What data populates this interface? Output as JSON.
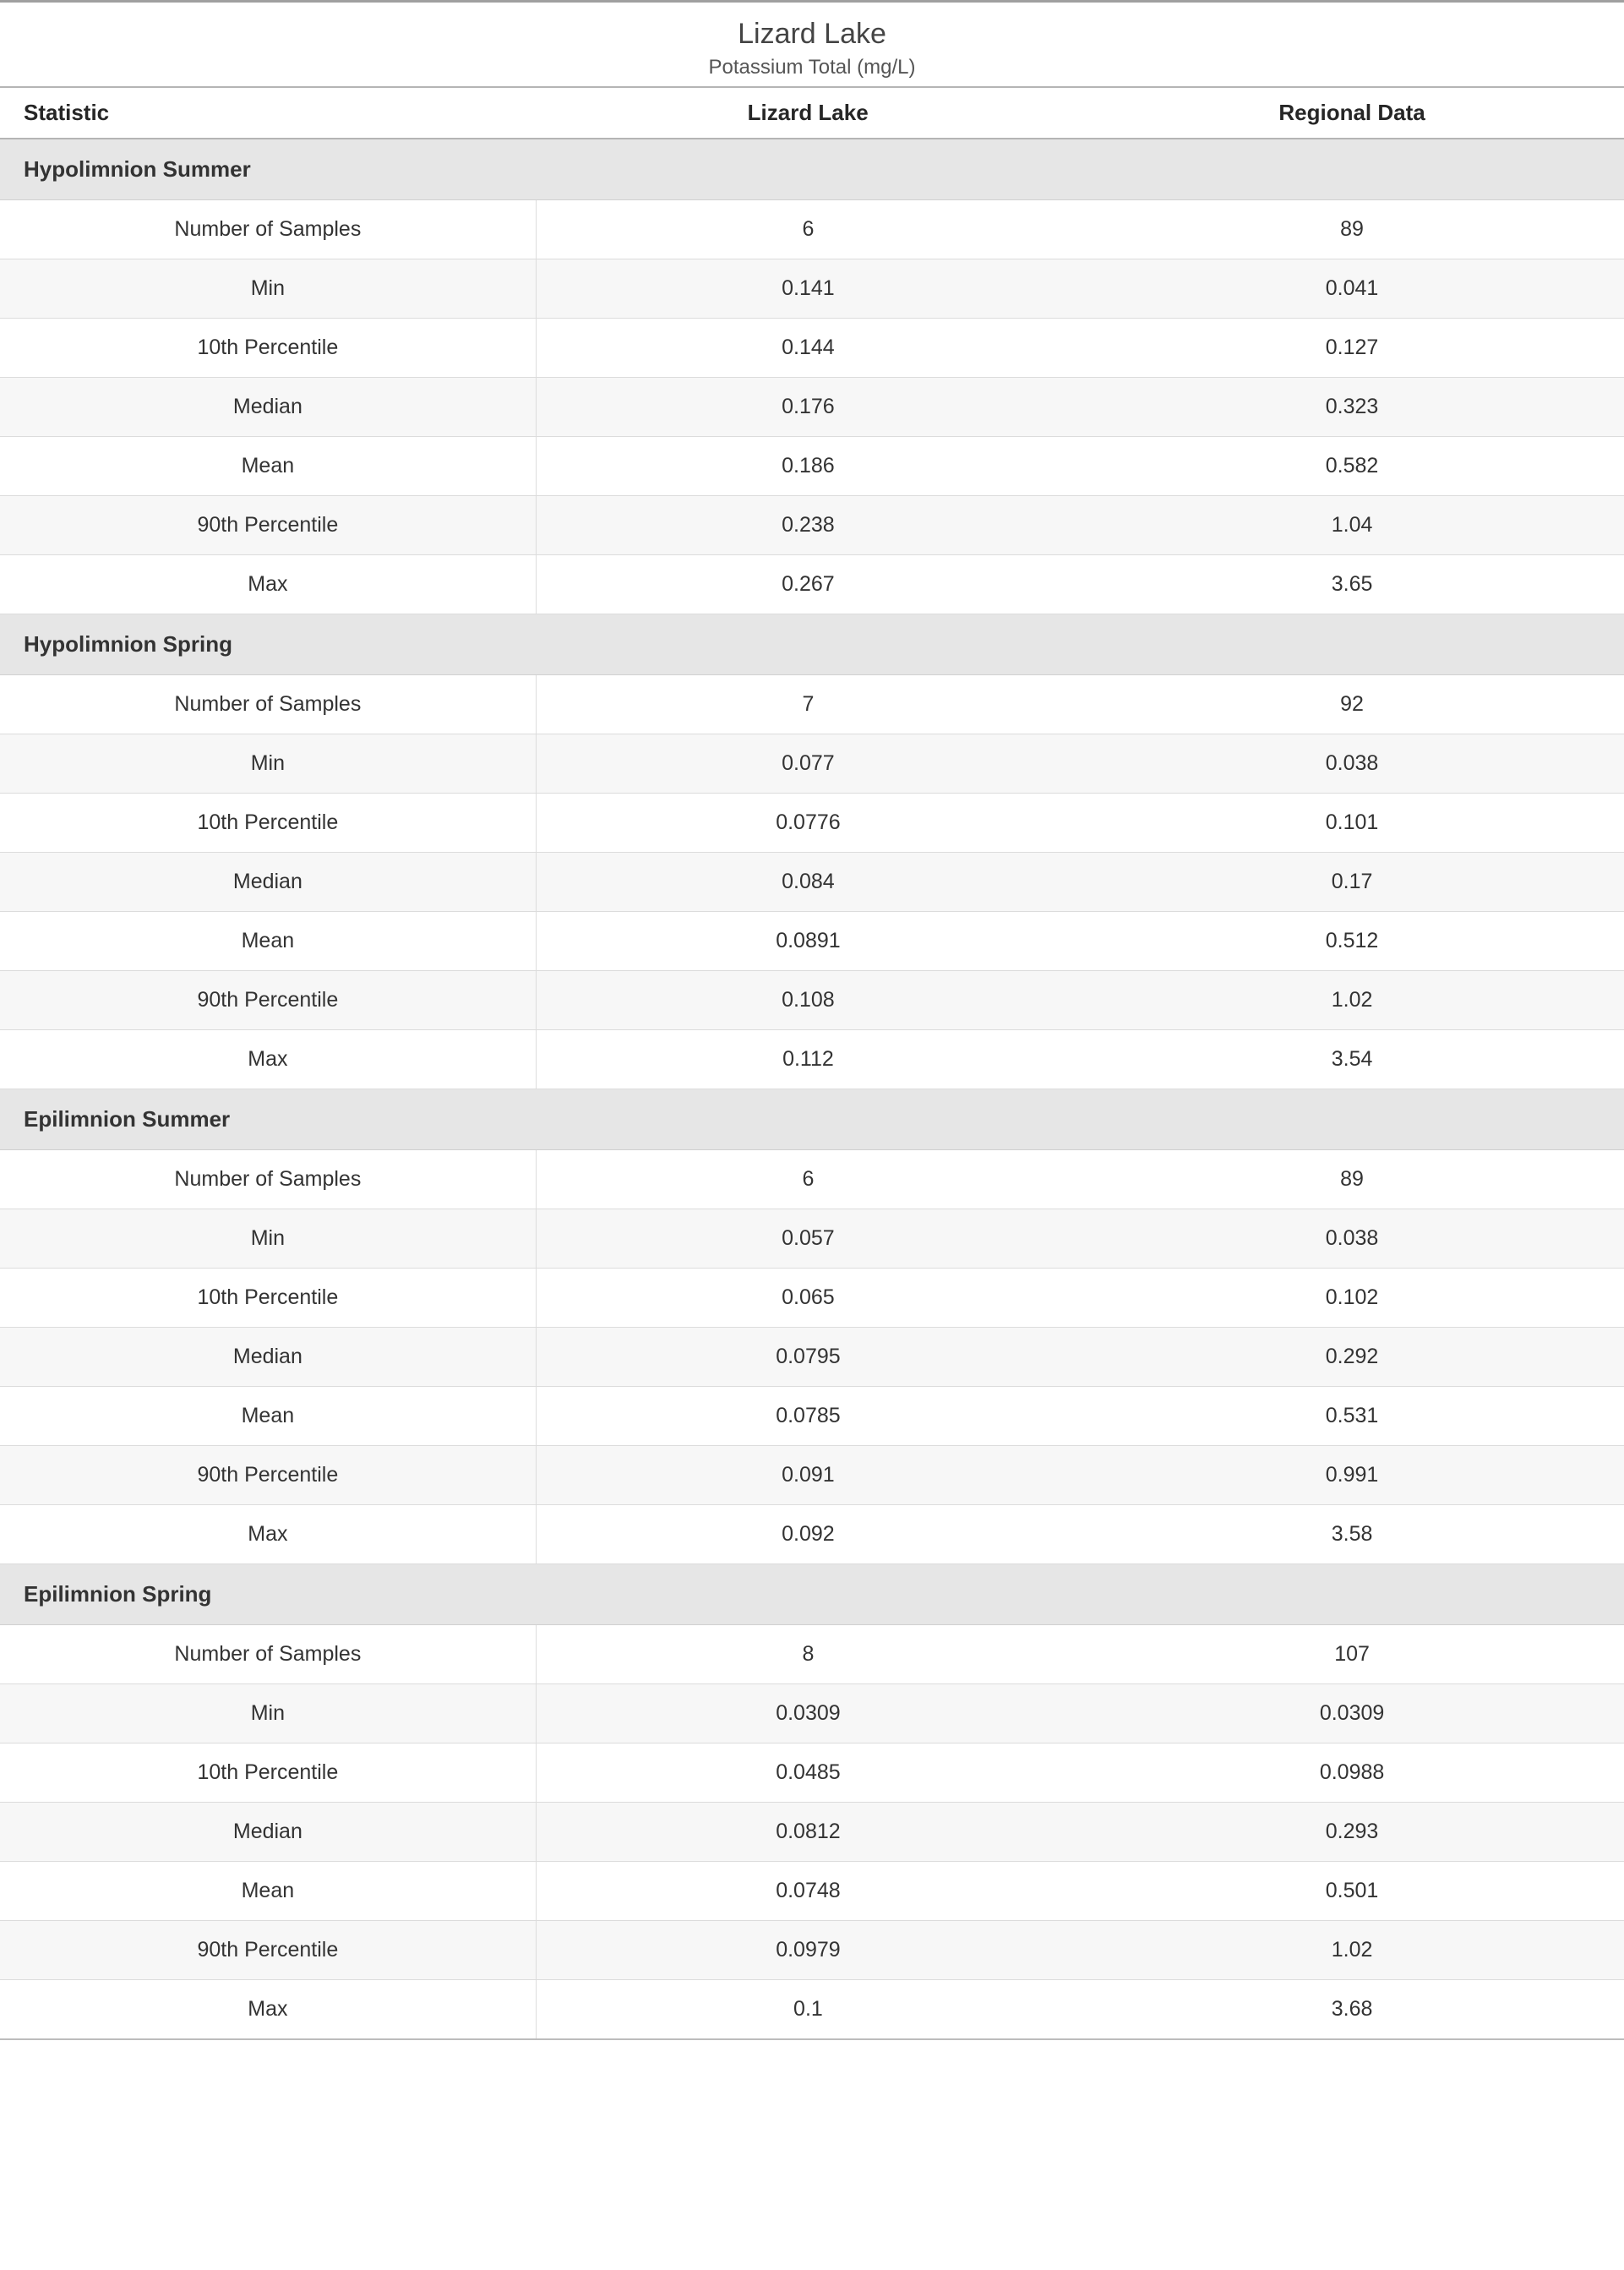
{
  "header": {
    "title": "Lizard Lake",
    "subtitle": "Potassium Total (mg/L)"
  },
  "columns": {
    "stat": "Statistic",
    "col1": "Lizard Lake",
    "col2": "Regional Data"
  },
  "stat_labels": {
    "samples": "Number of Samples",
    "min": "Min",
    "p10": "10th Percentile",
    "median": "Median",
    "mean": "Mean",
    "p90": "90th Percentile",
    "max": "Max"
  },
  "sections": [
    {
      "name": "Hypolimnion Summer",
      "rows": [
        {
          "stat": "samples",
          "v1": "6",
          "v2": "89"
        },
        {
          "stat": "min",
          "v1": "0.141",
          "v2": "0.041"
        },
        {
          "stat": "p10",
          "v1": "0.144",
          "v2": "0.127"
        },
        {
          "stat": "median",
          "v1": "0.176",
          "v2": "0.323"
        },
        {
          "stat": "mean",
          "v1": "0.186",
          "v2": "0.582"
        },
        {
          "stat": "p90",
          "v1": "0.238",
          "v2": "1.04"
        },
        {
          "stat": "max",
          "v1": "0.267",
          "v2": "3.65"
        }
      ]
    },
    {
      "name": "Hypolimnion Spring",
      "rows": [
        {
          "stat": "samples",
          "v1": "7",
          "v2": "92"
        },
        {
          "stat": "min",
          "v1": "0.077",
          "v2": "0.038"
        },
        {
          "stat": "p10",
          "v1": "0.0776",
          "v2": "0.101"
        },
        {
          "stat": "median",
          "v1": "0.084",
          "v2": "0.17"
        },
        {
          "stat": "mean",
          "v1": "0.0891",
          "v2": "0.512"
        },
        {
          "stat": "p90",
          "v1": "0.108",
          "v2": "1.02"
        },
        {
          "stat": "max",
          "v1": "0.112",
          "v2": "3.54"
        }
      ]
    },
    {
      "name": "Epilimnion Summer",
      "rows": [
        {
          "stat": "samples",
          "v1": "6",
          "v2": "89"
        },
        {
          "stat": "min",
          "v1": "0.057",
          "v2": "0.038"
        },
        {
          "stat": "p10",
          "v1": "0.065",
          "v2": "0.102"
        },
        {
          "stat": "median",
          "v1": "0.0795",
          "v2": "0.292"
        },
        {
          "stat": "mean",
          "v1": "0.0785",
          "v2": "0.531"
        },
        {
          "stat": "p90",
          "v1": "0.091",
          "v2": "0.991"
        },
        {
          "stat": "max",
          "v1": "0.092",
          "v2": "3.58"
        }
      ]
    },
    {
      "name": "Epilimnion Spring",
      "rows": [
        {
          "stat": "samples",
          "v1": "8",
          "v2": "107"
        },
        {
          "stat": "min",
          "v1": "0.0309",
          "v2": "0.0309"
        },
        {
          "stat": "p10",
          "v1": "0.0485",
          "v2": "0.0988"
        },
        {
          "stat": "median",
          "v1": "0.0812",
          "v2": "0.293"
        },
        {
          "stat": "mean",
          "v1": "0.0748",
          "v2": "0.501"
        },
        {
          "stat": "p90",
          "v1": "0.0979",
          "v2": "1.02"
        },
        {
          "stat": "max",
          "v1": "0.1",
          "v2": "3.68"
        }
      ]
    }
  ],
  "styling": {
    "colors": {
      "top_rule": "#a0a0a0",
      "header_rule": "#b5b5b5",
      "section_bg": "#e6e6e6",
      "row_alt_bg": "#f7f7f7",
      "row_border": "#dcdcdc",
      "bottom_rule": "#bcbcbc",
      "text": "#333333",
      "background": "#ffffff"
    },
    "fonts": {
      "title_size_pt": 26,
      "subtitle_size_pt": 18,
      "header_size_pt": 20,
      "body_size_pt": 19,
      "family": "Segoe UI"
    }
  }
}
